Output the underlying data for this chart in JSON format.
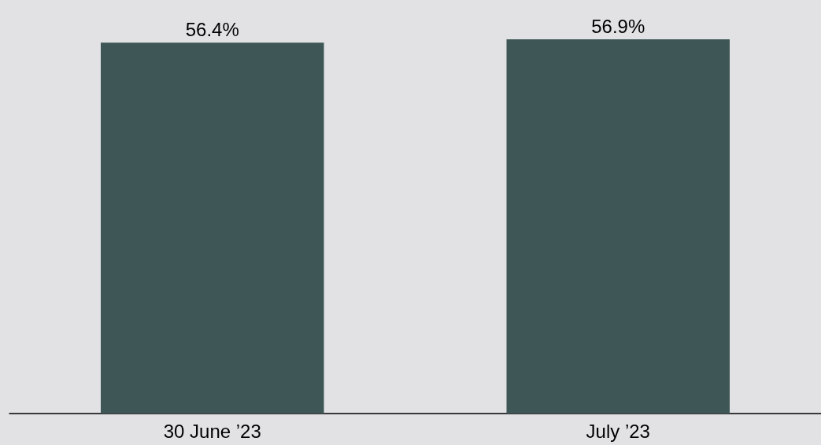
{
  "chart_data": {
    "type": "bar",
    "categories": [
      "30 June ’23",
      "July ’23"
    ],
    "values": [
      56.4,
      56.9
    ],
    "value_labels": [
      "56.4%",
      "56.9%"
    ],
    "color": "#3e5656"
  }
}
